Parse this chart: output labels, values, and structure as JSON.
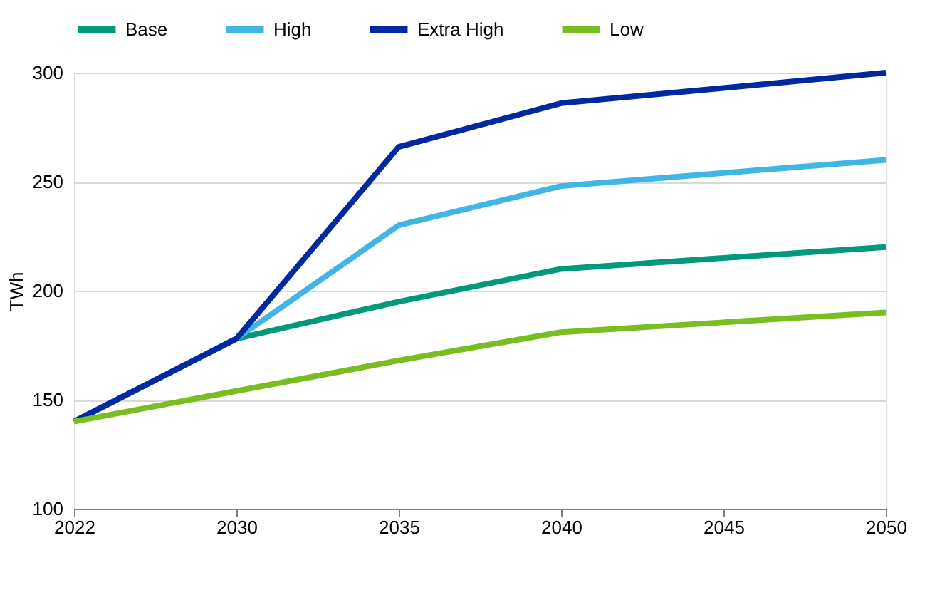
{
  "chart_data": {
    "type": "line",
    "ylabel": "TWh",
    "categories": [
      "2022",
      "2030",
      "2035",
      "2040",
      "2045",
      "2050"
    ],
    "series": [
      {
        "name": "Base",
        "color": "#00997a",
        "values": [
          140,
          178,
          195,
          210,
          215,
          220
        ]
      },
      {
        "name": "High",
        "color": "#41b6e6",
        "values": [
          140,
          178,
          230,
          248,
          254,
          260
        ]
      },
      {
        "name": "Extra High",
        "color": "#0028a0",
        "values": [
          140,
          178,
          266,
          286,
          293,
          300
        ]
      },
      {
        "name": "Low",
        "color": "#78be20",
        "values": [
          140,
          154,
          168,
          181,
          185.5,
          190
        ]
      }
    ],
    "ylim": [
      100,
      300
    ],
    "yticks": [
      100,
      150,
      200,
      250,
      300
    ],
    "grid": "y",
    "legend": "top",
    "marker": "none",
    "line_style": "solid"
  }
}
